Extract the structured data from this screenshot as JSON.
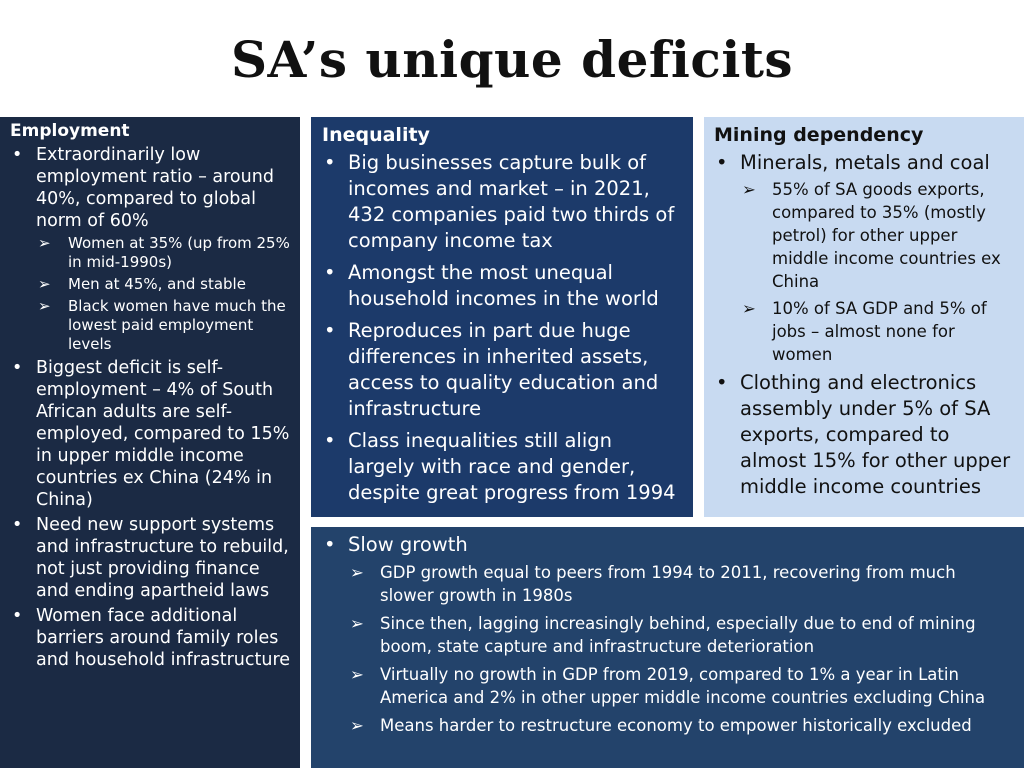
{
  "title": "SA’s unique deficits",
  "employment": {
    "heading": "Employment",
    "b1": "Extraordinarily low employment ratio – around 40%, compared to global norm of 60%",
    "b1_subs": [
      "Women at 35% (up from 25% in mid-1990s)",
      "Men at 45%, and stable",
      "Black women have much the lowest paid employment levels"
    ],
    "b2": "Biggest deficit is self-employment – 4% of South African adults are self-employed, compared to 15% in upper middle income countries ex China (24% in China)",
    "b3": "Need new support systems and infrastructure to rebuild, not just providing finance and ending apartheid laws",
    "b4": "Women face additional barriers around family roles and household infrastructure"
  },
  "inequality": {
    "heading": "Inequality",
    "bullets": [
      "Big businesses capture bulk of incomes and market – in 2021, 432 companies paid two thirds of company income tax",
      "Amongst the most unequal household incomes in the world",
      "Reproduces in part due huge differences in inherited assets, access to quality education and infrastructure",
      "Class inequalities still align largely with race and gender, despite great progress from 1994"
    ]
  },
  "mining": {
    "heading": "Mining dependency",
    "b1": "Minerals, metals and coal",
    "b1_subs": [
      "55% of SA goods exports, compared to 35% (mostly petrol) for other upper middle income countries ex China",
      "10% of SA GDP and 5% of jobs – almost none for women"
    ],
    "b2": "Clothing and electronics assembly under 5% of SA exports, compared to almost 15% for other upper middle income countries"
  },
  "slow_growth": {
    "b1": "Slow growth",
    "subs": [
      "GDP growth equal to peers from 1994 to 2011, recovering from much slower growth in 1980s",
      "Since then, lagging increasingly behind, especially due to end of mining boom, state capture and infrastructure deterioration",
      "Virtually no growth in GDP from 2019, compared to 1% a year in Latin America and 2% in other upper middle income countries excluding China",
      "Means harder to restructure economy to empower historically excluded"
    ]
  },
  "colors": {
    "employment_bg": "#1b2a44",
    "inequality_bg": "#1c3a6a",
    "mining_bg": "#c8daf1",
    "slow_growth_bg": "#23436b"
  }
}
